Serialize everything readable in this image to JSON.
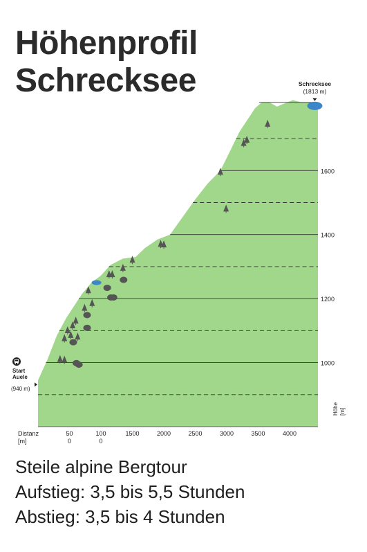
{
  "title_lines": [
    "Höhenprofil",
    "Schrecksee"
  ],
  "info": {
    "line1": "Steile alpine Bergtour",
    "line2": "Aufstieg: 3,5 bis 5,5 Stunden",
    "line3": "Abstieg: 3,5 bis 4 Stunden"
  },
  "chart_data": {
    "type": "area",
    "colors": {
      "fill": "#a1d78a",
      "lake": "#3a86c8",
      "tree": "#555555",
      "text": "#222222"
    },
    "x_axis": {
      "label_lines": [
        "Distanz",
        "[m]"
      ],
      "ticks": [
        {
          "value": 500,
          "lines": [
            "50",
            "0"
          ]
        },
        {
          "value": 1000,
          "lines": [
            "100",
            "0"
          ]
        },
        {
          "value": 1500,
          "lines": [
            "1500"
          ]
        },
        {
          "value": 2000,
          "lines": [
            "2000"
          ]
        },
        {
          "value": 2500,
          "lines": [
            "2500"
          ]
        },
        {
          "value": 3000,
          "lines": [
            "3000"
          ]
        },
        {
          "value": 3500,
          "lines": [
            "3500"
          ]
        },
        {
          "value": 4000,
          "lines": [
            "4000"
          ]
        }
      ],
      "range": [
        0,
        4450
      ]
    },
    "y_axis": {
      "label_lines": [
        "Höhe",
        "[m]"
      ],
      "range": [
        800,
        1830
      ],
      "labeled_ticks": [
        1000,
        1200,
        1400,
        1600
      ],
      "solid_lines": [
        1000,
        1200,
        1400,
        1600,
        1813
      ],
      "dashed_lines": [
        900,
        1100,
        1300,
        1500,
        1700
      ]
    },
    "profile": [
      {
        "x": 0,
        "y": 945
      },
      {
        "x": 150,
        "y": 1010
      },
      {
        "x": 300,
        "y": 1085
      },
      {
        "x": 450,
        "y": 1140
      },
      {
        "x": 600,
        "y": 1185
      },
      {
        "x": 700,
        "y": 1215
      },
      {
        "x": 850,
        "y": 1250
      },
      {
        "x": 1000,
        "y": 1272
      },
      {
        "x": 1150,
        "y": 1305
      },
      {
        "x": 1350,
        "y": 1325
      },
      {
        "x": 1550,
        "y": 1330
      },
      {
        "x": 1700,
        "y": 1358
      },
      {
        "x": 1900,
        "y": 1385
      },
      {
        "x": 2100,
        "y": 1400
      },
      {
        "x": 2300,
        "y": 1455
      },
      {
        "x": 2500,
        "y": 1510
      },
      {
        "x": 2700,
        "y": 1560
      },
      {
        "x": 2900,
        "y": 1600
      },
      {
        "x": 3050,
        "y": 1660
      },
      {
        "x": 3200,
        "y": 1720
      },
      {
        "x": 3350,
        "y": 1765
      },
      {
        "x": 3450,
        "y": 1795
      },
      {
        "x": 3550,
        "y": 1812
      },
      {
        "x": 3680,
        "y": 1813
      },
      {
        "x": 3800,
        "y": 1800
      },
      {
        "x": 3920,
        "y": 1810
      },
      {
        "x": 4050,
        "y": 1820
      },
      {
        "x": 4200,
        "y": 1813
      },
      {
        "x": 4450,
        "y": 1813
      }
    ],
    "start": {
      "x": 0,
      "y": 940,
      "label_lines": [
        "Start",
        "Auele"
      ],
      "elevation_label": "(940 m)"
    },
    "destination": {
      "x": 4400,
      "y": 1813,
      "name": "Schrecksee",
      "elevation_label": "(1813 m)"
    },
    "small_lake": {
      "x": 930,
      "y": 1250
    },
    "trees": [
      {
        "x": 350,
        "y": 1000,
        "kind": "conifer"
      },
      {
        "x": 420,
        "y": 998,
        "kind": "conifer"
      },
      {
        "x": 420,
        "y": 1065,
        "kind": "conifer"
      },
      {
        "x": 470,
        "y": 1090,
        "kind": "conifer"
      },
      {
        "x": 520,
        "y": 1075,
        "kind": "conifer"
      },
      {
        "x": 550,
        "y": 1105,
        "kind": "conifer"
      },
      {
        "x": 600,
        "y": 1120,
        "kind": "conifer"
      },
      {
        "x": 630,
        "y": 1070,
        "kind": "conifer"
      },
      {
        "x": 560,
        "y": 1055,
        "kind": "deciduous"
      },
      {
        "x": 610,
        "y": 990,
        "kind": "deciduous"
      },
      {
        "x": 650,
        "y": 985,
        "kind": "deciduous"
      },
      {
        "x": 740,
        "y": 1160,
        "kind": "conifer"
      },
      {
        "x": 780,
        "y": 1140,
        "kind": "deciduous"
      },
      {
        "x": 800,
        "y": 1215,
        "kind": "conifer"
      },
      {
        "x": 860,
        "y": 1175,
        "kind": "conifer"
      },
      {
        "x": 780,
        "y": 1100,
        "kind": "deciduous"
      },
      {
        "x": 1100,
        "y": 1225,
        "kind": "deciduous"
      },
      {
        "x": 1130,
        "y": 1265,
        "kind": "conifer"
      },
      {
        "x": 1180,
        "y": 1265,
        "kind": "conifer"
      },
      {
        "x": 1160,
        "y": 1195,
        "kind": "deciduous"
      },
      {
        "x": 1200,
        "y": 1195,
        "kind": "deciduous"
      },
      {
        "x": 1350,
        "y": 1285,
        "kind": "conifer"
      },
      {
        "x": 1360,
        "y": 1250,
        "kind": "deciduous"
      },
      {
        "x": 1500,
        "y": 1310,
        "kind": "conifer"
      },
      {
        "x": 1950,
        "y": 1360,
        "kind": "conifer"
      },
      {
        "x": 2000,
        "y": 1358,
        "kind": "conifer"
      },
      {
        "x": 2900,
        "y": 1585,
        "kind": "conifer"
      },
      {
        "x": 2990,
        "y": 1470,
        "kind": "conifer"
      },
      {
        "x": 3270,
        "y": 1675,
        "kind": "conifer"
      },
      {
        "x": 3320,
        "y": 1685,
        "kind": "conifer"
      },
      {
        "x": 3650,
        "y": 1735,
        "kind": "conifer"
      }
    ]
  }
}
